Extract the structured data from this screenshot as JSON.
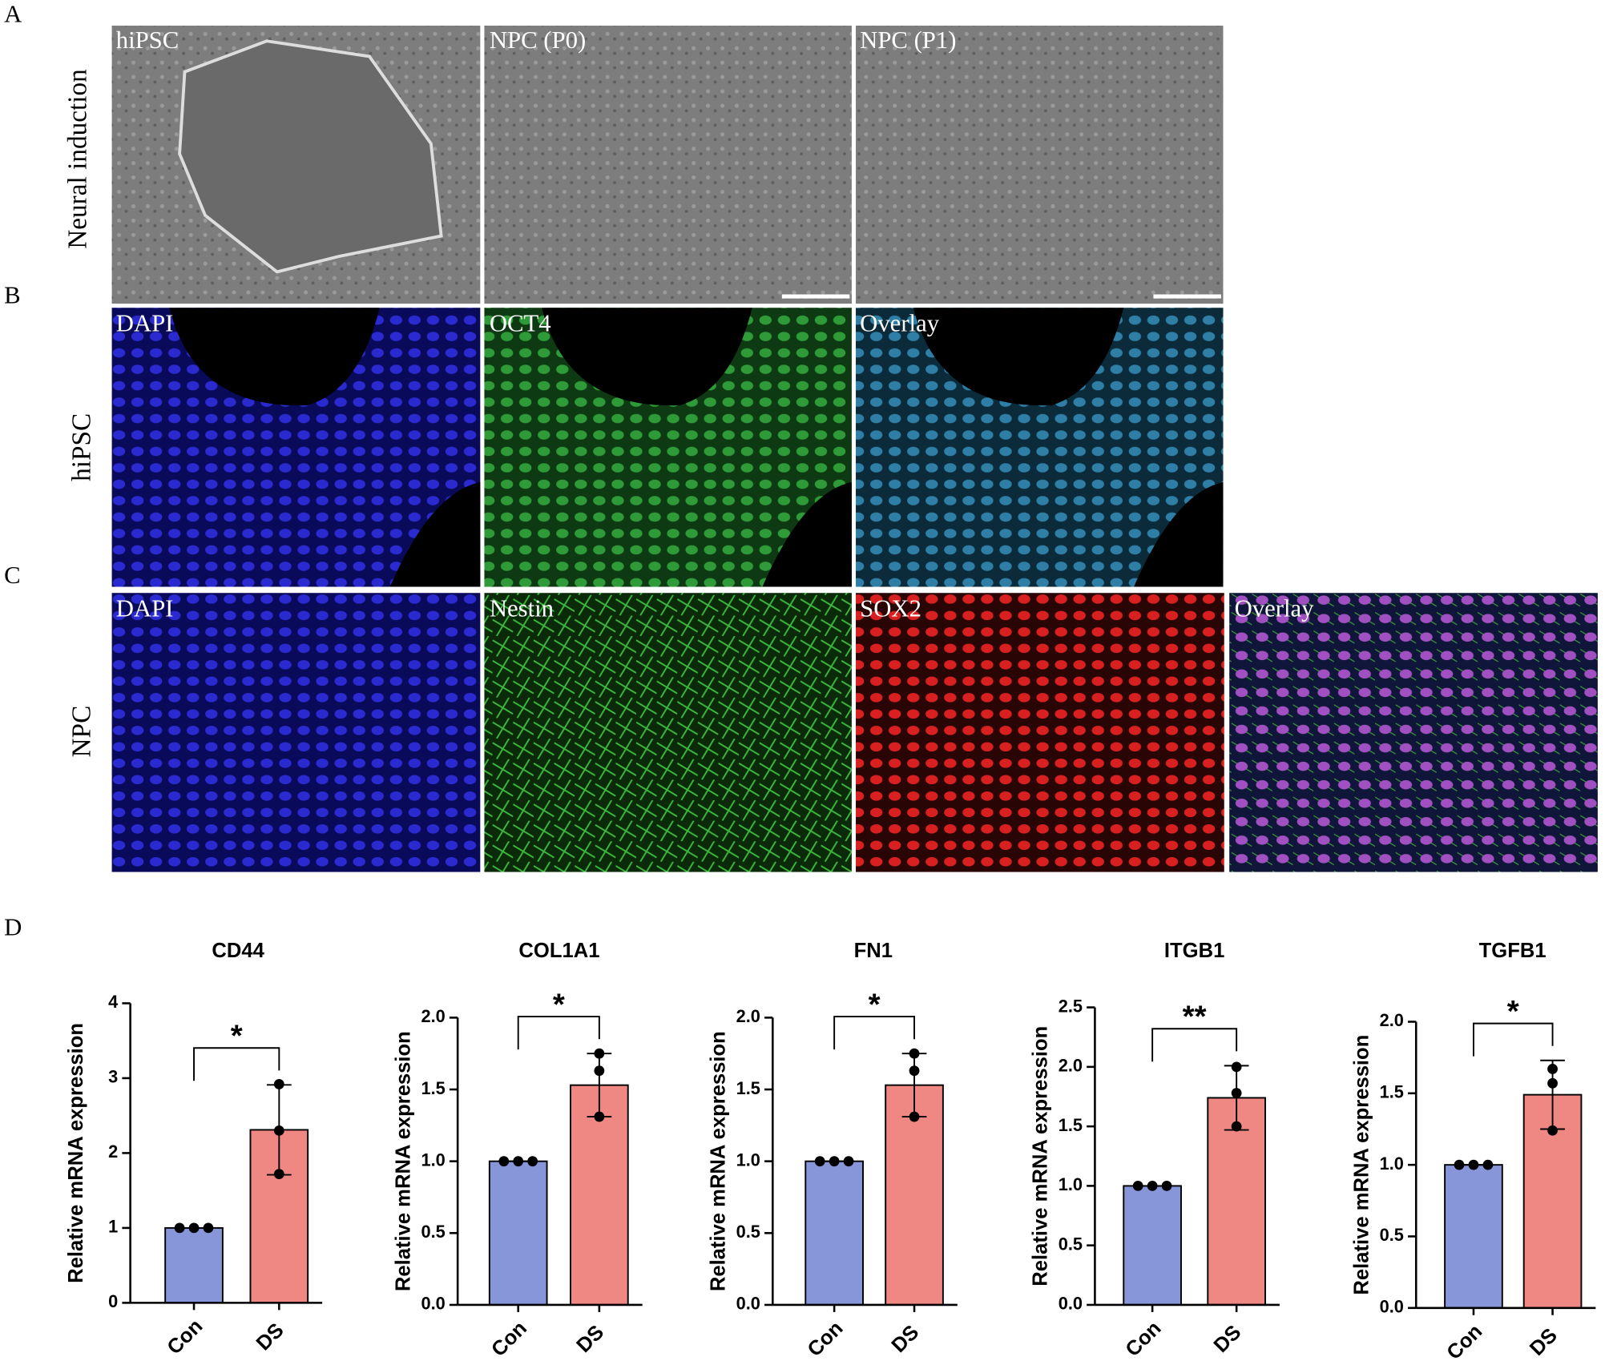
{
  "panel_labels": [
    "A",
    "B",
    "C",
    "D"
  ],
  "row_labels": [
    "Neural induction",
    "hiPSC",
    "NPC"
  ],
  "images": [
    [
      "hiPSC",
      "NPC (P0)",
      "NPC (P1)"
    ],
    [
      "DAPI",
      "OCT4",
      "Overlay"
    ],
    [
      "DAPI",
      "Nestin",
      "SOX2",
      "Overlay"
    ]
  ],
  "chart_data": [
    {
      "type": "bar",
      "title": "CD44",
      "y_label": "Relative mRNA expression",
      "categories": [
        "Con",
        "DS"
      ],
      "values": [
        1,
        2.31
      ],
      "errors": [
        0,
        0.6
      ],
      "points": [
        [
          1,
          1,
          1
        ],
        [
          2.92,
          2.3,
          1.72
        ]
      ],
      "colors": [
        "#8796d9",
        "#ef8783"
      ],
      "ylim": [
        0,
        4
      ],
      "yticks": [
        0,
        1,
        2,
        3,
        4
      ],
      "significance": "*"
    },
    {
      "type": "bar",
      "title": "COL1A1",
      "y_label": "Relative mRNA expression",
      "categories": [
        "Con",
        "DS"
      ],
      "values": [
        1,
        1.53
      ],
      "errors": [
        0,
        0.22
      ],
      "points": [
        [
          1,
          1,
          1
        ],
        [
          1.75,
          1.63,
          1.31
        ]
      ],
      "colors": [
        "#8796d9",
        "#ef8783"
      ],
      "ylim": [
        0,
        2
      ],
      "yticks": [
        {
          "value": 0,
          "label": "0.0"
        },
        0.5,
        {
          "value": 1,
          "label": "1.0"
        },
        1.5,
        {
          "value": 2,
          "label": "2.0"
        }
      ],
      "significance": "*"
    },
    {
      "type": "bar",
      "title": "FN1",
      "y_label": "Relative mRNA expression",
      "categories": [
        "Con",
        "DS"
      ],
      "values": [
        1,
        1.53
      ],
      "errors": [
        0,
        0.22
      ],
      "points": [
        [
          1,
          1,
          1
        ],
        [
          1.75,
          1.63,
          1.31
        ]
      ],
      "colors": [
        "#8796d9",
        "#ef8783"
      ],
      "ylim": [
        0,
        2
      ],
      "yticks": [
        {
          "value": 0,
          "label": "0.0"
        },
        0.5,
        {
          "value": 1,
          "label": "1.0"
        },
        1.5,
        {
          "value": 2,
          "label": "2.0"
        }
      ],
      "significance": "*"
    },
    {
      "type": "bar",
      "title": "ITGB1",
      "y_label": "Relative mRNA expression",
      "categories": [
        "Con",
        "DS"
      ],
      "values": [
        1,
        1.74
      ],
      "errors": [
        0,
        0.27
      ],
      "points": [
        [
          1,
          1,
          1
        ],
        [
          2.0,
          1.78,
          1.5
        ]
      ],
      "colors": [
        "#8796d9",
        "#ef8783"
      ],
      "ylim": [
        0,
        2.5
      ],
      "yticks": [
        {
          "value": 0,
          "label": "0.0"
        },
        0.5,
        {
          "value": 1,
          "label": "1.0"
        },
        1.5,
        {
          "value": 2,
          "label": "2.0"
        },
        2.5
      ],
      "significance": "**"
    },
    {
      "type": "bar",
      "title": "TGFB1",
      "y_label": "Relative mRNA expression",
      "categories": [
        "Con",
        "DS"
      ],
      "values": [
        1,
        1.49
      ],
      "errors": [
        0,
        0.24
      ],
      "points": [
        [
          1,
          1,
          1
        ],
        [
          1.67,
          1.57,
          1.24
        ]
      ],
      "colors": [
        "#8796d9",
        "#ef8783"
      ],
      "ylim": [
        0,
        2
      ],
      "yticks": [
        {
          "value": 0,
          "label": "0.0"
        },
        0.5,
        {
          "value": 1,
          "label": "1.0"
        },
        1.5,
        {
          "value": 2,
          "label": "2.0"
        }
      ],
      "significance": "*"
    }
  ]
}
